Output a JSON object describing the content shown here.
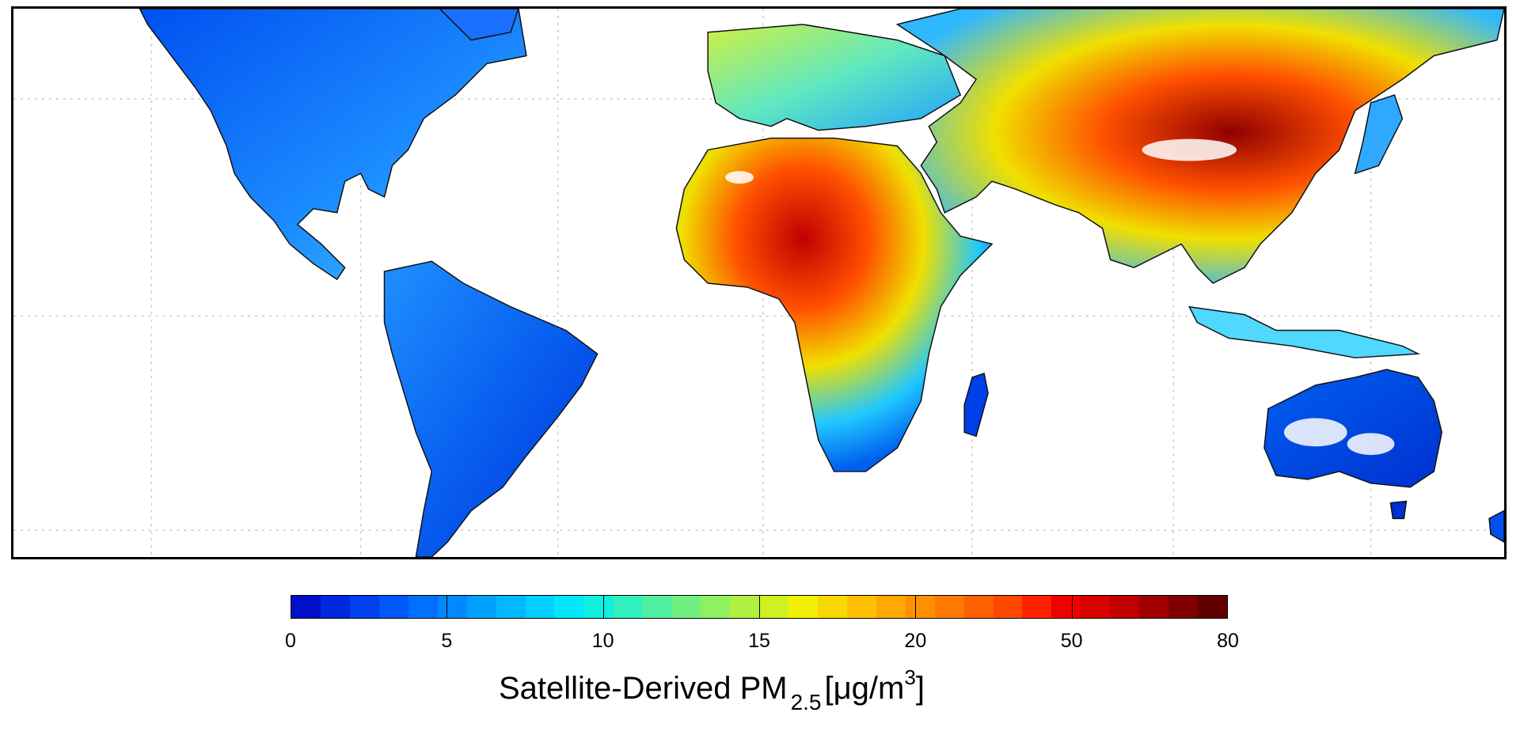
{
  "map": {
    "projection": "equirectangular",
    "graticule": "dotted",
    "features": [
      "North America",
      "South America",
      "Europe",
      "Africa",
      "Asia",
      "Australia",
      "Madagascar",
      "Greenland",
      "Japan",
      "Indonesia",
      "New Zealand"
    ]
  },
  "colorbar": {
    "tick_labels": [
      "0",
      "5",
      "10",
      "15",
      "20",
      "50",
      "80"
    ],
    "colors": [
      "#0010c8",
      "#0028e0",
      "#0040f0",
      "#0058f8",
      "#0070ff",
      "#0088ff",
      "#00a0ff",
      "#00b8ff",
      "#00d0ff",
      "#00e8f8",
      "#10f0e0",
      "#30f0c0",
      "#50f0a0",
      "#70f080",
      "#90f060",
      "#b0f040",
      "#d0f020",
      "#f0f000",
      "#f8d800",
      "#ffc000",
      "#ffa800",
      "#ff9000",
      "#ff7800",
      "#ff6000",
      "#ff4800",
      "#ff2000",
      "#f00000",
      "#d80000",
      "#c00000",
      "#a00000",
      "#800000",
      "#600000"
    ],
    "title_main": "Satellite-Derived PM",
    "title_sub": "2.5",
    "title_unit_pre": "[μg/m",
    "title_unit_sup": "3",
    "title_unit_post": "]"
  }
}
